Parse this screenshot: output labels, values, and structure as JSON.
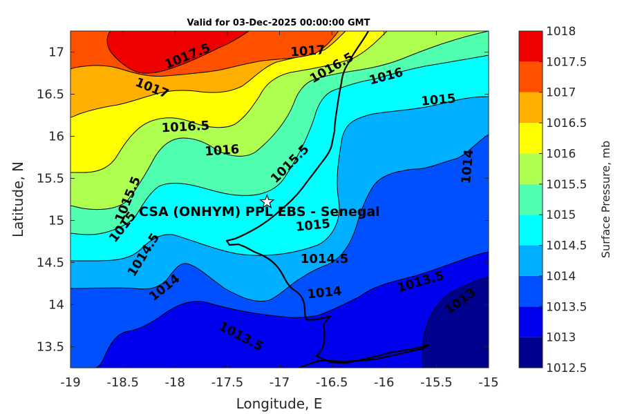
{
  "chart_data": {
    "type": "contour",
    "title": "Valid for 03-Dec-2025 00:00:00 GMT",
    "xlabel": "Longitude, E",
    "ylabel": "Latitude, N",
    "xlim": [
      -19,
      -15
    ],
    "ylim": [
      13.25,
      17.25
    ],
    "xticks": [
      "-19",
      "-18.5",
      "-18",
      "-17.5",
      "-17",
      "-16.5",
      "-16",
      "-15.5",
      "-15"
    ],
    "yticks": [
      "13.5",
      "14",
      "14.5",
      "15",
      "15.5",
      "16",
      "16.5",
      "17"
    ],
    "colorbar": {
      "label": "Surface Pressure, mb",
      "ticks": [
        "1012.5",
        "1013",
        "1013.5",
        "1014",
        "1014.5",
        "1015",
        "1015.5",
        "1016",
        "1016.5",
        "1017",
        "1017.5",
        "1018"
      ],
      "levels": [
        1012.5,
        1013,
        1013.5,
        1014,
        1014.5,
        1015,
        1015.5,
        1016,
        1016.5,
        1017,
        1017.5,
        1018
      ],
      "colors": [
        "#00008f",
        "#0000ef",
        "#0050ff",
        "#00afff",
        "#00ffff",
        "#50ffaf",
        "#afff50",
        "#ffff00",
        "#ffaf00",
        "#ff5000",
        "#ef0000",
        "#af0000"
      ]
    },
    "contour_labels": [
      {
        "text": "1017.5",
        "lon": -17.88,
        "lat": 16.95,
        "angle": -22
      },
      {
        "text": "1017",
        "lon": -18.22,
        "lat": 16.57,
        "angle": 22
      },
      {
        "text": "1017",
        "lon": -16.73,
        "lat": 17.01,
        "angle": -4
      },
      {
        "text": "1016.5",
        "lon": -16.5,
        "lat": 16.81,
        "angle": -30
      },
      {
        "text": "1016",
        "lon": -15.98,
        "lat": 16.71,
        "angle": -15
      },
      {
        "text": "1016.5",
        "lon": -17.9,
        "lat": 16.11,
        "angle": -3
      },
      {
        "text": "1016",
        "lon": -17.55,
        "lat": 15.83,
        "angle": -4
      },
      {
        "text": "1015",
        "lon": -15.48,
        "lat": 16.43,
        "angle": -5
      },
      {
        "text": "1015.5",
        "lon": -16.9,
        "lat": 15.67,
        "angle": -45
      },
      {
        "text": "1014",
        "lon": -15.2,
        "lat": 15.64,
        "angle": -85
      },
      {
        "text": "1015.5",
        "lon": -18.45,
        "lat": 15.25,
        "angle": -68
      },
      {
        "text": "1015",
        "lon": -18.5,
        "lat": 14.92,
        "angle": -52
      },
      {
        "text": "1015",
        "lon": -16.68,
        "lat": 14.94,
        "angle": -6
      },
      {
        "text": "1014.5",
        "lon": -18.3,
        "lat": 14.59,
        "angle": -58
      },
      {
        "text": "1014.5",
        "lon": -16.57,
        "lat": 14.54,
        "angle": 0
      },
      {
        "text": "1014",
        "lon": -16.57,
        "lat": 14.14,
        "angle": -6
      },
      {
        "text": "1014",
        "lon": -18.1,
        "lat": 14.2,
        "angle": -38
      },
      {
        "text": "1013.5",
        "lon": -15.65,
        "lat": 14.27,
        "angle": -16
      },
      {
        "text": "1013",
        "lon": -15.27,
        "lat": 14.04,
        "angle": -36
      },
      {
        "text": "1013.5",
        "lon": -17.37,
        "lat": 13.62,
        "angle": 28
      }
    ],
    "site": {
      "name": "CSA (ONHYM) PPL EBS  - Senegal",
      "lon": -17.12,
      "lat": 15.22
    }
  }
}
